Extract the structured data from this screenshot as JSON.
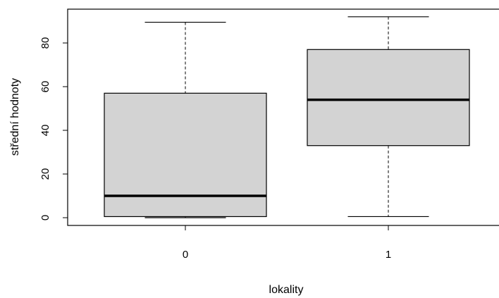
{
  "chart_data": {
    "type": "boxplot",
    "xlabel": "lokality",
    "ylabel": "střední hodnoty",
    "categories": [
      "0",
      "1"
    ],
    "ylim": [
      0,
      95
    ],
    "yticks": [
      0,
      20,
      40,
      60,
      80
    ],
    "grid": false,
    "box_fill": "#d3d3d3",
    "boxes": [
      {
        "category": "0",
        "min": 0,
        "q1": 0.5,
        "median": 10,
        "q3": 57,
        "max": 89.5
      },
      {
        "category": "1",
        "min": 0.5,
        "q1": 33,
        "median": 54,
        "q3": 77,
        "max": 92
      }
    ]
  }
}
